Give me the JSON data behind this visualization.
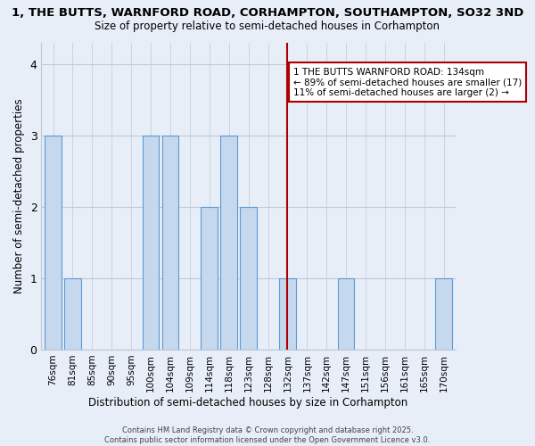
{
  "title_line1": "1, THE BUTTS, WARNFORD ROAD, CORHAMPTON, SOUTHAMPTON, SO32 3ND",
  "title_line2": "Size of property relative to semi-detached houses in Corhampton",
  "xlabel": "Distribution of semi-detached houses by size in Corhampton",
  "ylabel": "Number of semi-detached properties",
  "categories": [
    "76sqm",
    "81sqm",
    "85sqm",
    "90sqm",
    "95sqm",
    "100sqm",
    "104sqm",
    "109sqm",
    "114sqm",
    "118sqm",
    "123sqm",
    "128sqm",
    "132sqm",
    "137sqm",
    "142sqm",
    "147sqm",
    "151sqm",
    "156sqm",
    "161sqm",
    "165sqm",
    "170sqm"
  ],
  "values": [
    3,
    1,
    0,
    0,
    0,
    3,
    3,
    0,
    2,
    3,
    2,
    0,
    1,
    0,
    0,
    1,
    0,
    0,
    0,
    0,
    1
  ],
  "bar_color": "#c5d8ed",
  "bar_edge_color": "#5b9bd5",
  "grid_color": "#c0c8d8",
  "background_color": "#e8eef8",
  "red_line_index": 12,
  "red_line_color": "#aa0000",
  "annotation_text": "1 THE BUTTS WARNFORD ROAD: 134sqm\n← 89% of semi-detached houses are smaller (17)\n11% of semi-detached houses are larger (2) →",
  "annotation_box_facecolor": "#ffffff",
  "annotation_box_edgecolor": "#aa0000",
  "footer_text": "Contains HM Land Registry data © Crown copyright and database right 2025.\nContains public sector information licensed under the Open Government Licence v3.0.",
  "ylim": [
    0,
    4.3
  ],
  "yticks": [
    0,
    1,
    2,
    3,
    4
  ]
}
